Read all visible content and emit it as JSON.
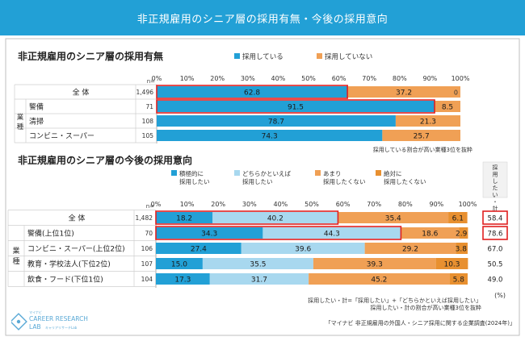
{
  "header": {
    "title": "非正規雇用のシニア層の採用有無・今後の採用意向"
  },
  "chart_data": [
    {
      "type": "bar",
      "stacked": true,
      "orientation": "horizontal",
      "title": "非正規雇用のシニア層の採用有無",
      "n_label": "n=",
      "xlim": [
        0,
        100
      ],
      "x_ticks": [
        "0%",
        "10%",
        "20%",
        "30%",
        "40%",
        "50%",
        "60%",
        "70%",
        "80%",
        "90%",
        "100%"
      ],
      "series": [
        {
          "name": "採用している",
          "color": "#22a0d6"
        },
        {
          "name": "採用していない",
          "color": "#f0a055"
        }
      ],
      "group_label": "業種",
      "rows": [
        {
          "label": "全 体",
          "n": "1,496",
          "values": [
            62.8,
            37.2
          ],
          "labels": [
            "62.8",
            "37.2"
          ],
          "end_label": "0",
          "highlight": true
        },
        {
          "label": "警備",
          "n": "71",
          "values": [
            91.5,
            8.5
          ],
          "labels": [
            "91.5",
            "8.5"
          ],
          "highlight": true
        },
        {
          "label": "清掃",
          "n": "108",
          "values": [
            78.7,
            21.3
          ],
          "labels": [
            "78.7",
            "21.3"
          ]
        },
        {
          "label": "コンビニ・スーパー",
          "n": "105",
          "values": [
            74.3,
            25.7
          ],
          "labels": [
            "74.3",
            "25.7"
          ]
        }
      ],
      "note": "採用している割合が高い業種3位を抜粋"
    },
    {
      "type": "bar",
      "stacked": true,
      "orientation": "horizontal",
      "title": "非正規雇用のシニア層の今後の採用意向",
      "n_label": "n=",
      "xlim": [
        0,
        100
      ],
      "x_ticks": [
        "0%",
        "10%",
        "20%",
        "30%",
        "40%",
        "50%",
        "60%",
        "70%",
        "80%",
        "90%",
        "100%"
      ],
      "series": [
        {
          "name": "積極的に 採用したい",
          "lines": [
            "積極的に",
            "採用したい"
          ],
          "color": "#22a0d6"
        },
        {
          "name": "どちらかといえば 採用したい",
          "lines": [
            "どちらかといえば",
            "採用したい"
          ],
          "color": "#a8d8ef"
        },
        {
          "name": "あまり 採用したくない",
          "lines": [
            "あまり",
            "採用したくない"
          ],
          "color": "#f0a055"
        },
        {
          "name": "絶対に 採用したくない",
          "lines": [
            "絶対に",
            "採用したくない"
          ],
          "color": "#e89030"
        }
      ],
      "total_header": "採用したい・計",
      "group_label": "業種",
      "rows": [
        {
          "label": "全 体",
          "n": "1,482",
          "values": [
            18.2,
            40.2,
            35.4,
            6.1
          ],
          "labels": [
            "18.2",
            "40.2",
            "35.4",
            "6.1"
          ],
          "total": "58.4",
          "highlight": true,
          "total_highlight": true
        },
        {
          "label": "警備(上位1位)",
          "n": "70",
          "values": [
            34.3,
            44.3,
            18.6,
            2.9
          ],
          "labels": [
            "34.3",
            "44.3",
            "18.6",
            "2.9"
          ],
          "total": "78.6",
          "highlight": true,
          "total_highlight": true
        },
        {
          "label": "コンビニ・スーパー(上位2位)",
          "n": "106",
          "values": [
            27.4,
            39.6,
            29.2,
            3.8
          ],
          "labels": [
            "27.4",
            "39.6",
            "29.2",
            "3.8"
          ],
          "total": "67.0"
        },
        {
          "label": "教育・学校法人(下位2位)",
          "n": "107",
          "values": [
            15.0,
            35.5,
            39.3,
            10.3
          ],
          "labels": [
            "15.0",
            "35.5",
            "39.3",
            "10.3"
          ],
          "total": "50.5"
        },
        {
          "label": "飲食・フード(下位1位)",
          "n": "104",
          "values": [
            17.3,
            31.7,
            45.2,
            5.8
          ],
          "labels": [
            "17.3",
            "31.7",
            "45.2",
            "5.8"
          ],
          "total": "49.0"
        }
      ],
      "unit_note": "(%)",
      "notes": [
        "採用したい・計=「採用したい」+「どちらかといえば採用したい」",
        "採用したい・計の割合が高い業種3位を抜粋"
      ]
    }
  ],
  "footer": {
    "source": "「マイナビ 非正規雇用の外国人・シニア採用に関する企業調査(2024年)」",
    "logo_small": "マイナビ",
    "logo_line1": "CAREER RESEARCH",
    "logo_line2": "LAB",
    "logo_sub": "キャリアリサーチLab"
  }
}
